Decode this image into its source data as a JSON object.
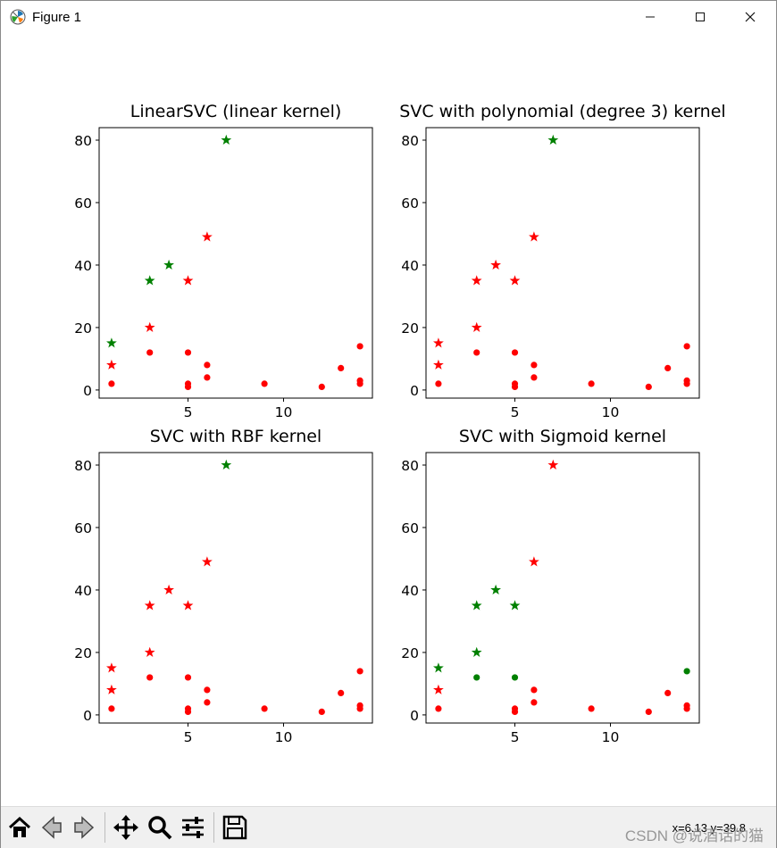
{
  "window": {
    "title": "Figure 1",
    "icon": "matplotlib-figure-icon",
    "minimize_icon": "minimize-icon",
    "maximize_icon": "maximize-icon",
    "close_icon": "close-icon"
  },
  "toolbar": {
    "buttons": [
      {
        "name": "home-button",
        "icon": "home-icon"
      },
      {
        "name": "back-button",
        "icon": "back-arrow-icon"
      },
      {
        "name": "forward-button",
        "icon": "forward-arrow-icon"
      },
      {
        "name": "pan-button",
        "icon": "move-icon"
      },
      {
        "name": "zoom-button",
        "icon": "magnifier-icon"
      },
      {
        "name": "configure-subplots-button",
        "icon": "sliders-icon"
      },
      {
        "name": "save-button",
        "icon": "floppy-disk-icon"
      }
    ],
    "coordinates": "x=6.13  y=39.8",
    "watermark": "CSDN @说酒话的猫"
  },
  "colors": {
    "red": "#ff0000",
    "green": "#008000"
  },
  "chart_data": [
    {
      "type": "scatter",
      "title": "LinearSVC (linear kernel)",
      "xticks": [
        5,
        10
      ],
      "yticks": [
        0,
        20,
        40,
        60,
        80
      ],
      "xlim": [
        0.35,
        14.65
      ],
      "ylim": [
        -2.6,
        84.0
      ],
      "points": [
        {
          "x": 1,
          "y": 15,
          "marker": "star",
          "color": "green"
        },
        {
          "x": 1,
          "y": 8,
          "marker": "star",
          "color": "red"
        },
        {
          "x": 1,
          "y": 2,
          "marker": "dot",
          "color": "red"
        },
        {
          "x": 3,
          "y": 35,
          "marker": "star",
          "color": "green"
        },
        {
          "x": 3,
          "y": 20,
          "marker": "star",
          "color": "red"
        },
        {
          "x": 3,
          "y": 12,
          "marker": "dot",
          "color": "red"
        },
        {
          "x": 4,
          "y": 40,
          "marker": "star",
          "color": "green"
        },
        {
          "x": 5,
          "y": 35,
          "marker": "star",
          "color": "red"
        },
        {
          "x": 5,
          "y": 12,
          "marker": "dot",
          "color": "red"
        },
        {
          "x": 5,
          "y": 2,
          "marker": "dot",
          "color": "red"
        },
        {
          "x": 5,
          "y": 1,
          "marker": "dot",
          "color": "red"
        },
        {
          "x": 6,
          "y": 49,
          "marker": "star",
          "color": "red"
        },
        {
          "x": 6,
          "y": 8,
          "marker": "dot",
          "color": "red"
        },
        {
          "x": 6,
          "y": 4,
          "marker": "dot",
          "color": "red"
        },
        {
          "x": 7,
          "y": 80,
          "marker": "star",
          "color": "green"
        },
        {
          "x": 9,
          "y": 2,
          "marker": "dot",
          "color": "red"
        },
        {
          "x": 12,
          "y": 1,
          "marker": "dot",
          "color": "red"
        },
        {
          "x": 13,
          "y": 7,
          "marker": "dot",
          "color": "red"
        },
        {
          "x": 14,
          "y": 14,
          "marker": "dot",
          "color": "red"
        },
        {
          "x": 14,
          "y": 3,
          "marker": "dot",
          "color": "red"
        },
        {
          "x": 14,
          "y": 2,
          "marker": "dot",
          "color": "red"
        }
      ]
    },
    {
      "type": "scatter",
      "title": "SVC with polynomial (degree 3) kernel",
      "xticks": [
        5,
        10
      ],
      "yticks": [
        0,
        20,
        40,
        60,
        80
      ],
      "xlim": [
        0.35,
        14.65
      ],
      "ylim": [
        -2.6,
        84.0
      ],
      "points": [
        {
          "x": 1,
          "y": 15,
          "marker": "star",
          "color": "red"
        },
        {
          "x": 1,
          "y": 8,
          "marker": "star",
          "color": "red"
        },
        {
          "x": 1,
          "y": 2,
          "marker": "dot",
          "color": "red"
        },
        {
          "x": 3,
          "y": 35,
          "marker": "star",
          "color": "red"
        },
        {
          "x": 3,
          "y": 20,
          "marker": "star",
          "color": "red"
        },
        {
          "x": 3,
          "y": 12,
          "marker": "dot",
          "color": "red"
        },
        {
          "x": 4,
          "y": 40,
          "marker": "star",
          "color": "red"
        },
        {
          "x": 5,
          "y": 35,
          "marker": "star",
          "color": "red"
        },
        {
          "x": 5,
          "y": 12,
          "marker": "dot",
          "color": "red"
        },
        {
          "x": 5,
          "y": 2,
          "marker": "dot",
          "color": "red"
        },
        {
          "x": 5,
          "y": 1,
          "marker": "dot",
          "color": "red"
        },
        {
          "x": 6,
          "y": 49,
          "marker": "star",
          "color": "red"
        },
        {
          "x": 6,
          "y": 8,
          "marker": "dot",
          "color": "red"
        },
        {
          "x": 6,
          "y": 4,
          "marker": "dot",
          "color": "red"
        },
        {
          "x": 7,
          "y": 80,
          "marker": "star",
          "color": "green"
        },
        {
          "x": 9,
          "y": 2,
          "marker": "dot",
          "color": "red"
        },
        {
          "x": 12,
          "y": 1,
          "marker": "dot",
          "color": "red"
        },
        {
          "x": 13,
          "y": 7,
          "marker": "dot",
          "color": "red"
        },
        {
          "x": 14,
          "y": 14,
          "marker": "dot",
          "color": "red"
        },
        {
          "x": 14,
          "y": 3,
          "marker": "dot",
          "color": "red"
        },
        {
          "x": 14,
          "y": 2,
          "marker": "dot",
          "color": "red"
        }
      ]
    },
    {
      "type": "scatter",
      "title": "SVC with RBF kernel",
      "xticks": [
        5,
        10
      ],
      "yticks": [
        0,
        20,
        40,
        60,
        80
      ],
      "xlim": [
        0.35,
        14.65
      ],
      "ylim": [
        -2.6,
        84.0
      ],
      "points": [
        {
          "x": 1,
          "y": 15,
          "marker": "star",
          "color": "red"
        },
        {
          "x": 1,
          "y": 8,
          "marker": "star",
          "color": "red"
        },
        {
          "x": 1,
          "y": 2,
          "marker": "dot",
          "color": "red"
        },
        {
          "x": 3,
          "y": 35,
          "marker": "star",
          "color": "red"
        },
        {
          "x": 3,
          "y": 20,
          "marker": "star",
          "color": "red"
        },
        {
          "x": 3,
          "y": 12,
          "marker": "dot",
          "color": "red"
        },
        {
          "x": 4,
          "y": 40,
          "marker": "star",
          "color": "red"
        },
        {
          "x": 5,
          "y": 35,
          "marker": "star",
          "color": "red"
        },
        {
          "x": 5,
          "y": 12,
          "marker": "dot",
          "color": "red"
        },
        {
          "x": 5,
          "y": 2,
          "marker": "dot",
          "color": "red"
        },
        {
          "x": 5,
          "y": 1,
          "marker": "dot",
          "color": "red"
        },
        {
          "x": 6,
          "y": 49,
          "marker": "star",
          "color": "red"
        },
        {
          "x": 6,
          "y": 8,
          "marker": "dot",
          "color": "red"
        },
        {
          "x": 6,
          "y": 4,
          "marker": "dot",
          "color": "red"
        },
        {
          "x": 7,
          "y": 80,
          "marker": "star",
          "color": "green"
        },
        {
          "x": 9,
          "y": 2,
          "marker": "dot",
          "color": "red"
        },
        {
          "x": 12,
          "y": 1,
          "marker": "dot",
          "color": "red"
        },
        {
          "x": 13,
          "y": 7,
          "marker": "dot",
          "color": "red"
        },
        {
          "x": 14,
          "y": 14,
          "marker": "dot",
          "color": "red"
        },
        {
          "x": 14,
          "y": 3,
          "marker": "dot",
          "color": "red"
        },
        {
          "x": 14,
          "y": 2,
          "marker": "dot",
          "color": "red"
        }
      ]
    },
    {
      "type": "scatter",
      "title": "SVC with Sigmoid kernel",
      "xticks": [
        5,
        10
      ],
      "yticks": [
        0,
        20,
        40,
        60,
        80
      ],
      "xlim": [
        0.35,
        14.65
      ],
      "ylim": [
        -2.6,
        84.0
      ],
      "points": [
        {
          "x": 1,
          "y": 15,
          "marker": "star",
          "color": "green"
        },
        {
          "x": 1,
          "y": 8,
          "marker": "star",
          "color": "red"
        },
        {
          "x": 1,
          "y": 2,
          "marker": "dot",
          "color": "red"
        },
        {
          "x": 3,
          "y": 35,
          "marker": "star",
          "color": "green"
        },
        {
          "x": 3,
          "y": 20,
          "marker": "star",
          "color": "green"
        },
        {
          "x": 3,
          "y": 12,
          "marker": "dot",
          "color": "green"
        },
        {
          "x": 4,
          "y": 40,
          "marker": "star",
          "color": "green"
        },
        {
          "x": 5,
          "y": 35,
          "marker": "star",
          "color": "green"
        },
        {
          "x": 5,
          "y": 12,
          "marker": "dot",
          "color": "green"
        },
        {
          "x": 5,
          "y": 2,
          "marker": "dot",
          "color": "red"
        },
        {
          "x": 5,
          "y": 1,
          "marker": "dot",
          "color": "red"
        },
        {
          "x": 6,
          "y": 49,
          "marker": "star",
          "color": "red"
        },
        {
          "x": 6,
          "y": 8,
          "marker": "dot",
          "color": "red"
        },
        {
          "x": 6,
          "y": 4,
          "marker": "dot",
          "color": "red"
        },
        {
          "x": 7,
          "y": 80,
          "marker": "star",
          "color": "red"
        },
        {
          "x": 9,
          "y": 2,
          "marker": "dot",
          "color": "red"
        },
        {
          "x": 12,
          "y": 1,
          "marker": "dot",
          "color": "red"
        },
        {
          "x": 13,
          "y": 7,
          "marker": "dot",
          "color": "red"
        },
        {
          "x": 14,
          "y": 14,
          "marker": "dot",
          "color": "green"
        },
        {
          "x": 14,
          "y": 3,
          "marker": "dot",
          "color": "red"
        },
        {
          "x": 14,
          "y": 2,
          "marker": "dot",
          "color": "red"
        }
      ]
    }
  ]
}
